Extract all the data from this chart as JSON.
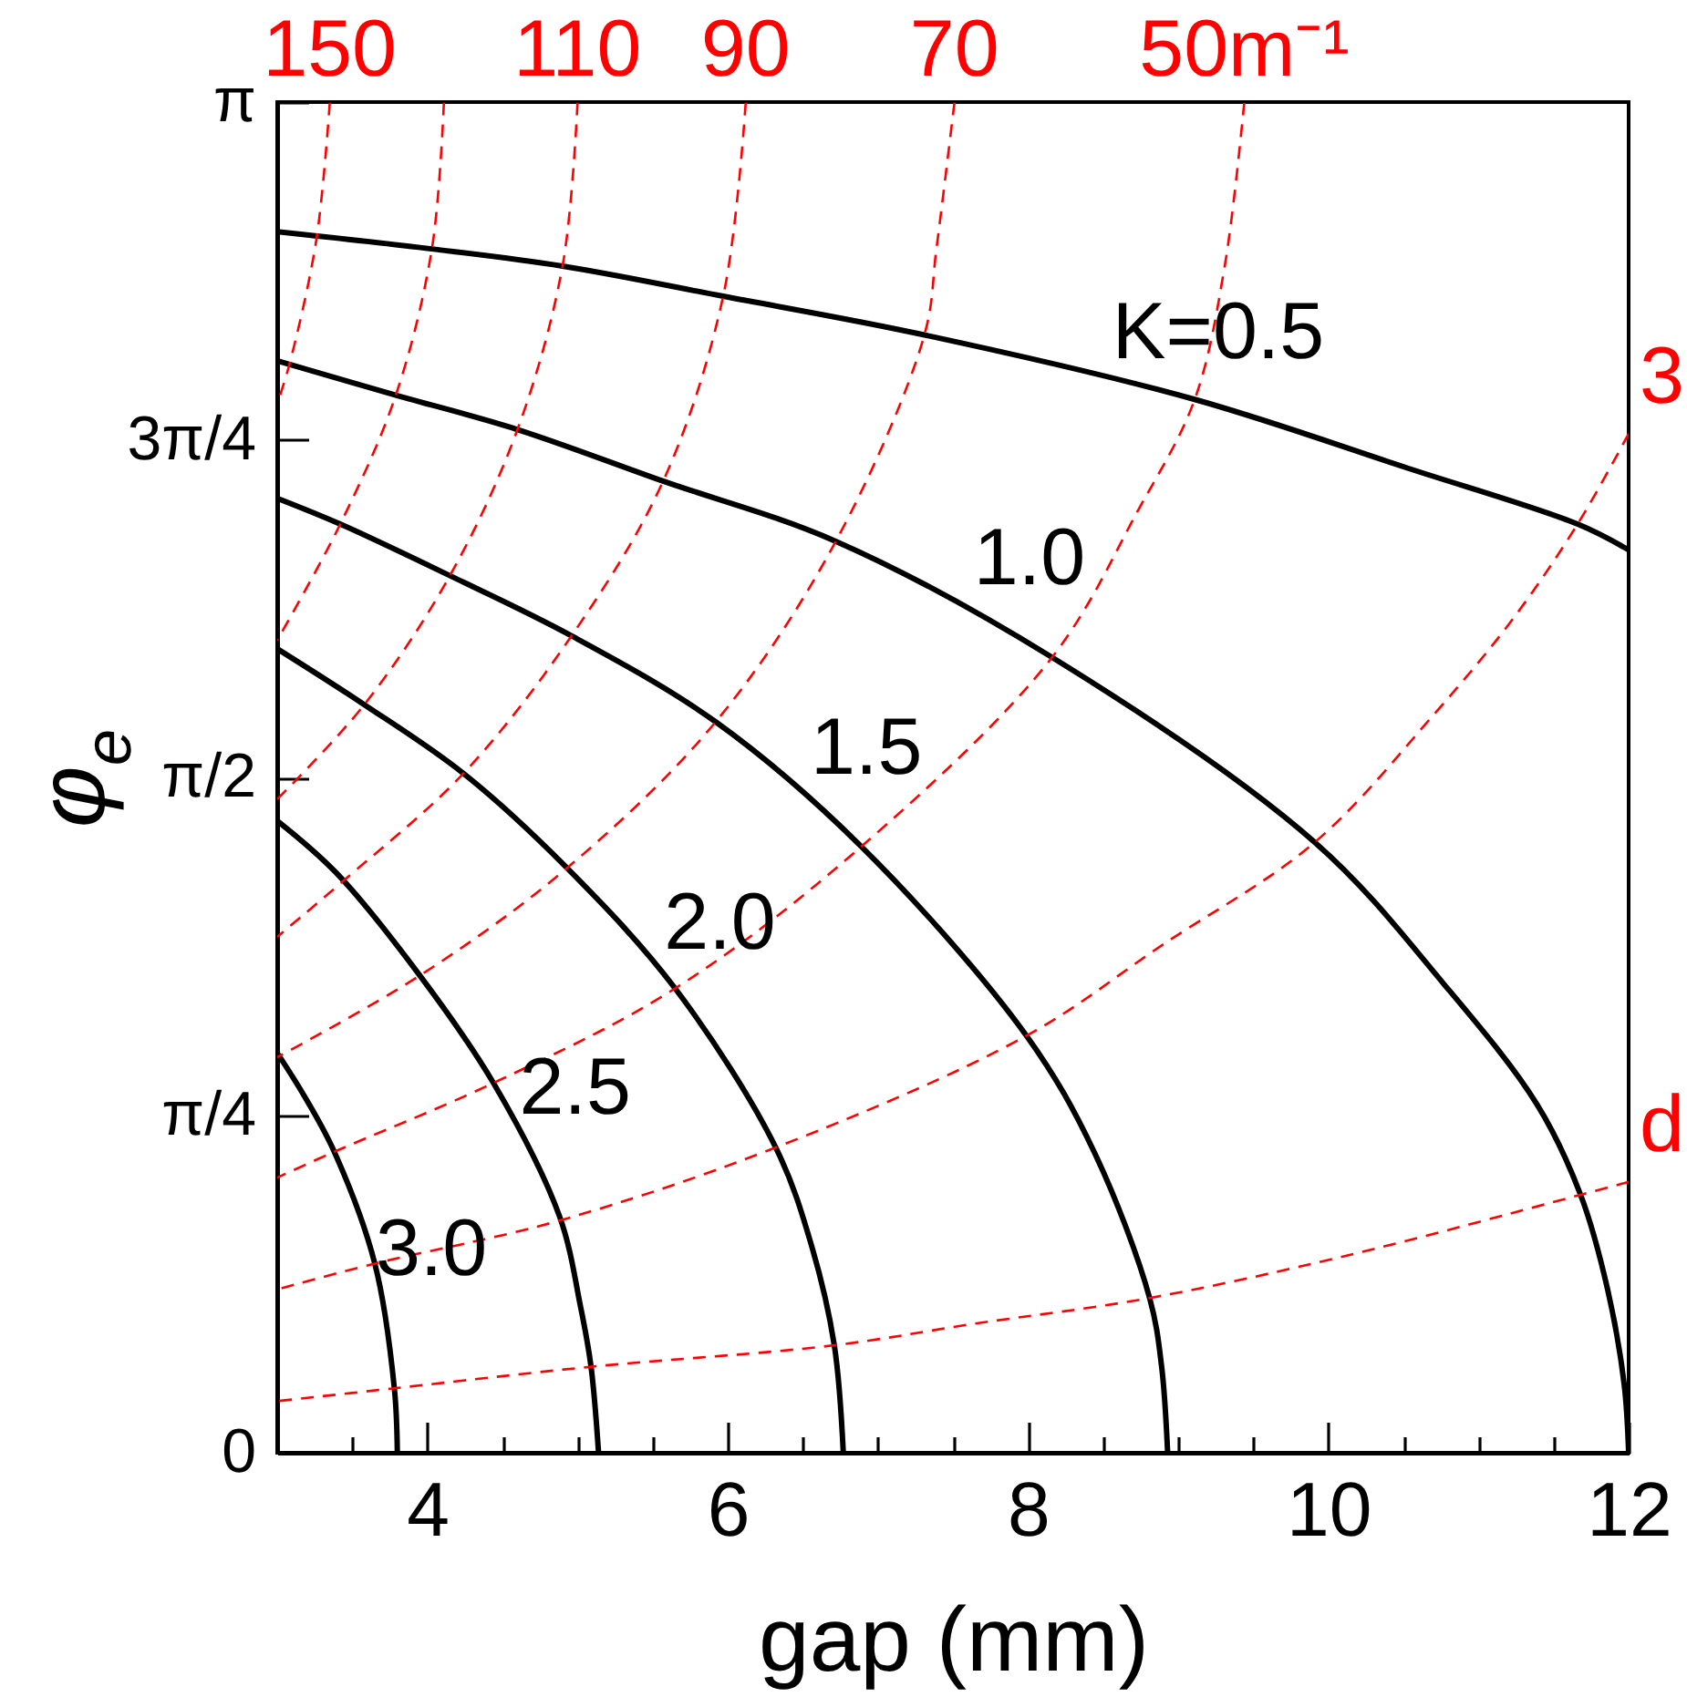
{
  "chart_data": {
    "type": "line",
    "xlabel": "gap (mm)",
    "ylabel": "φ$_{e}$",
    "xlim": [
      3,
      12
    ],
    "ylim": [
      0,
      3.1416
    ],
    "xticks": [
      {
        "value": 3.5,
        "label": null
      },
      4,
      {
        "value": 4.5,
        "label": null
      },
      {
        "value": 5,
        "label": null
      },
      {
        "value": 5.5,
        "label": null
      },
      6,
      {
        "value": 6.5,
        "label": null
      },
      {
        "value": 7,
        "label": null
      },
      {
        "value": 7.5,
        "label": null
      },
      8,
      {
        "value": 8.5,
        "label": null
      },
      {
        "value": 9,
        "label": null
      },
      {
        "value": 9.5,
        "label": null
      },
      10,
      {
        "value": 10.5,
        "label": null
      },
      {
        "value": 11,
        "label": null
      },
      {
        "value": 11.5,
        "label": null
      },
      12
    ],
    "yticks": [
      0,
      {
        "value": 0.7854,
        "label": "π/4"
      },
      {
        "value": 1.5708,
        "label": "π/2"
      },
      {
        "value": 2.3562,
        "label": "3π/4"
      },
      {
        "value": 3.1416,
        "label": "π"
      }
    ],
    "grid": false,
    "series": [
      {
        "name": "K=0.5",
        "color": "#000000",
        "line_style": "solid",
        "x": [
          3,
          4.03,
          4.9,
          5.97,
          7.31,
          9.11,
          10.53,
          11.66,
          12
        ],
        "values": [
          2.84,
          2.8,
          2.76,
          2.69,
          2.6,
          2.45,
          2.29,
          2.16,
          2.1
        ]
      },
      {
        "name": "1.0",
        "color": "#000000",
        "line_style": "solid",
        "x": [
          3,
          3.79,
          4.6,
          5.57,
          6.72,
          8.16,
          9.91,
          10.77,
          11.39,
          11.68,
          11.86,
          11.97,
          12
        ],
        "values": [
          2.54,
          2.46,
          2.38,
          2.26,
          2.12,
          1.85,
          1.42,
          1.09,
          0.81,
          0.6,
          0.38,
          0.16,
          0
        ]
      },
      {
        "name": "1.5",
        "color": "#000000",
        "line_style": "solid",
        "x": [
          3,
          3.42,
          4.15,
          4.96,
          5.92,
          6.89,
          7.99,
          8.44,
          8.81,
          8.89,
          8.93
        ],
        "values": [
          2.22,
          2.16,
          2.04,
          1.9,
          1.7,
          1.41,
          0.97,
          0.7,
          0.36,
          0.2,
          0
        ]
      },
      {
        "name": "2.0",
        "color": "#000000",
        "line_style": "solid",
        "x": [
          3,
          3.58,
          4.24,
          4.93,
          5.65,
          6.32,
          6.56,
          6.71,
          6.77
        ],
        "values": [
          1.87,
          1.74,
          1.58,
          1.36,
          1.08,
          0.71,
          0.48,
          0.25,
          0
        ]
      },
      {
        "name": "2.5",
        "color": "#000000",
        "line_style": "solid",
        "x": [
          3,
          3.39,
          3.95,
          4.44,
          4.88,
          5.02,
          5.09,
          5.14
        ],
        "values": [
          1.47,
          1.35,
          1.11,
          0.86,
          0.55,
          0.34,
          0.2,
          0
        ]
      },
      {
        "name": "3.0",
        "color": "#000000",
        "line_style": "solid",
        "x": [
          3,
          3.18,
          3.38,
          3.65,
          3.78,
          3.8
        ],
        "values": [
          0.93,
          0.83,
          0.7,
          0.44,
          0.15,
          0
        ]
      },
      {
        "name": "150",
        "color": "#ff0000",
        "line_style": "dashed",
        "x": [
          3.35,
          3.26,
          3.08,
          3
        ],
        "values": [
          3.14,
          2.82,
          2.53,
          2.44
        ]
      },
      {
        "color": "#ff0000",
        "line_style": "dashed",
        "x": [
          4.11,
          4.03,
          3.79,
          3.42,
          3
        ],
        "values": [
          3.14,
          2.8,
          2.46,
          2.16,
          1.89
        ]
      },
      {
        "name": "110",
        "color": "#ff0000",
        "line_style": "dashed",
        "x": [
          5,
          4.9,
          4.6,
          4.15,
          3.58,
          3
        ],
        "values": [
          3.14,
          2.76,
          2.38,
          2.04,
          1.74,
          1.52
        ]
      },
      {
        "name": "90",
        "color": "#ff0000",
        "line_style": "dashed",
        "x": [
          6.12,
          5.97,
          5.57,
          4.96,
          4.24,
          3.44,
          3
        ],
        "values": [
          3.14,
          2.69,
          2.26,
          1.9,
          1.58,
          1.33,
          1.2
        ]
      },
      {
        "name": "70",
        "color": "#ff0000",
        "line_style": "dashed",
        "x": [
          7.51,
          7.39,
          7.31,
          6.72,
          5.92,
          4.93,
          3.95,
          3
        ],
        "values": [
          3.14,
          2.8,
          2.6,
          2.12,
          1.7,
          1.36,
          1.11,
          0.92
        ]
      },
      {
        "name": "50m⁻¹",
        "color": "#ff0000",
        "line_style": "dashed",
        "x": [
          9.44,
          9.31,
          9.11,
          8.73,
          8.16,
          6.89,
          5.65,
          4.44,
          3.38,
          3
        ],
        "values": [
          3.14,
          2.76,
          2.45,
          2.19,
          1.85,
          1.41,
          1.08,
          0.86,
          0.7,
          0.64
        ]
      },
      {
        "name": "3",
        "color": "#ff0000",
        "line_style": "dashed",
        "x": [
          12,
          11.66,
          11.23,
          10.71,
          9.91,
          8.89,
          7.99,
          6.32,
          4.88,
          3.65,
          3
        ],
        "values": [
          2.37,
          2.16,
          1.94,
          1.72,
          1.42,
          1.18,
          0.97,
          0.71,
          0.54,
          0.44,
          0.38
        ]
      },
      {
        "name": "d",
        "color": "#ff0000",
        "line_style": "dashed",
        "x": [
          12,
          11.68,
          10.14,
          8.81,
          7.64,
          6.71,
          5.09,
          3.78,
          3
        ],
        "values": [
          0.63,
          0.6,
          0.46,
          0.36,
          0.3,
          0.25,
          0.2,
          0.15,
          0.12
        ]
      }
    ]
  }
}
